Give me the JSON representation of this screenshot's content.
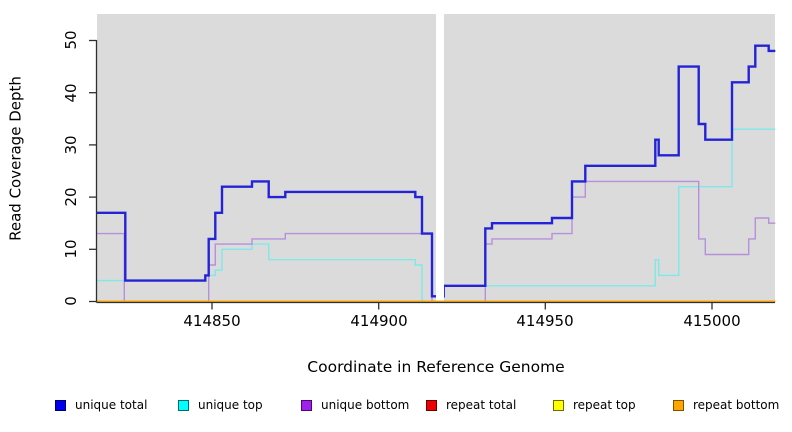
{
  "figure": {
    "background": "#FFFFFF",
    "panel_background": "#DBDBDB",
    "axis_color": "#2F2F2F"
  },
  "axes": {
    "x": {
      "label": "Coordinate in Reference Genome",
      "ticks": [
        "414850",
        "414900",
        "414950",
        "415000"
      ]
    },
    "y": {
      "label": "Read Coverage Depth",
      "ticks": [
        "0",
        "10",
        "20",
        "30",
        "40",
        "50"
      ]
    }
  },
  "legend": {
    "items": [
      {
        "label": "unique total",
        "fill": "#0000EE",
        "border": "#000066"
      },
      {
        "label": "unique top",
        "fill": "#00FFFF",
        "border": "#006B6B"
      },
      {
        "label": "unique bottom",
        "fill": "#A020F0",
        "border": "#4B0A66"
      },
      {
        "label": "repeat total",
        "fill": "#EE0000",
        "border": "#660000"
      },
      {
        "label": "repeat top",
        "fill": "#FFFF00",
        "border": "#6B6B00"
      },
      {
        "label": "repeat bottom",
        "fill": "#FFA500",
        "border": "#7A5200"
      }
    ]
  },
  "chart_data": {
    "type": "step-line",
    "title": "",
    "xlabel": "Coordinate in Reference Genome",
    "ylabel": "Read Coverage Depth",
    "x_ticks": [
      414850,
      414900,
      414950,
      415000
    ],
    "y_ticks": [
      0,
      10,
      20,
      30,
      40,
      50
    ],
    "xlim": [
      414815.5,
      415019
    ],
    "ylim": [
      0,
      55
    ],
    "grid": false,
    "legend_position": "bottom",
    "gap_x": [
      414917.2,
      414919.6
    ],
    "x_end": 415019,
    "series": [
      {
        "name": "unique top",
        "layer": "unique",
        "color": "#7FE9E9",
        "width": 1.4,
        "points": [
          [
            414815.5,
            4
          ],
          [
            414848,
            5
          ],
          [
            414851,
            6
          ],
          [
            414853,
            10
          ],
          [
            414862,
            11
          ],
          [
            414867,
            8
          ],
          [
            414911,
            7
          ],
          [
            414913,
            0
          ],
          [
            414919.5,
            3
          ],
          [
            414983,
            8
          ],
          [
            414984,
            5
          ],
          [
            414990,
            22
          ],
          [
            415006,
            33
          ]
        ]
      },
      {
        "name": "unique bottom",
        "layer": "unique",
        "color": "#B78FDC",
        "width": 1.4,
        "points": [
          [
            414815.5,
            13
          ],
          [
            414823.7,
            0
          ],
          [
            414849,
            7
          ],
          [
            414851,
            11
          ],
          [
            414862,
            12
          ],
          [
            414872,
            13
          ],
          [
            414916,
            0
          ],
          [
            414932,
            11
          ],
          [
            414934,
            12
          ],
          [
            414952,
            13
          ],
          [
            414958,
            20
          ],
          [
            414962,
            23
          ],
          [
            414996,
            12
          ],
          [
            414998,
            9
          ],
          [
            415011,
            12
          ],
          [
            415013,
            16
          ],
          [
            415017,
            15
          ]
        ]
      },
      {
        "name": "unique total",
        "layer": "unique",
        "color": "#2424D6",
        "width": 2.4,
        "points": [
          [
            414815.5,
            17
          ],
          [
            414824,
            4
          ],
          [
            414848,
            5
          ],
          [
            414849,
            12
          ],
          [
            414851,
            17
          ],
          [
            414853,
            22
          ],
          [
            414862,
            23
          ],
          [
            414867,
            20
          ],
          [
            414872,
            21
          ],
          [
            414911,
            20
          ],
          [
            414913,
            13
          ],
          [
            414916,
            1
          ],
          [
            414919.5,
            3
          ],
          [
            414932,
            14
          ],
          [
            414934,
            15
          ],
          [
            414952,
            16
          ],
          [
            414958,
            23
          ],
          [
            414962,
            26
          ],
          [
            414983,
            31
          ],
          [
            414984,
            28
          ],
          [
            414990,
            45
          ],
          [
            414996,
            34
          ],
          [
            414998,
            31
          ],
          [
            415006,
            42
          ],
          [
            415011,
            45
          ],
          [
            415013,
            49
          ],
          [
            415017,
            48
          ]
        ]
      },
      {
        "name": "repeat total",
        "layer": "repeat",
        "color": "#DD0000",
        "width": 1.4,
        "points": [
          [
            414815.5,
            0
          ]
        ]
      },
      {
        "name": "repeat top",
        "layer": "repeat",
        "color": "#FFFF00",
        "width": 1.4,
        "points": [
          [
            414815.5,
            0
          ]
        ]
      },
      {
        "name": "repeat bottom",
        "layer": "repeat",
        "color": "#FFA500",
        "width": 1.7,
        "points": [
          [
            414815.5,
            0
          ]
        ]
      }
    ]
  }
}
